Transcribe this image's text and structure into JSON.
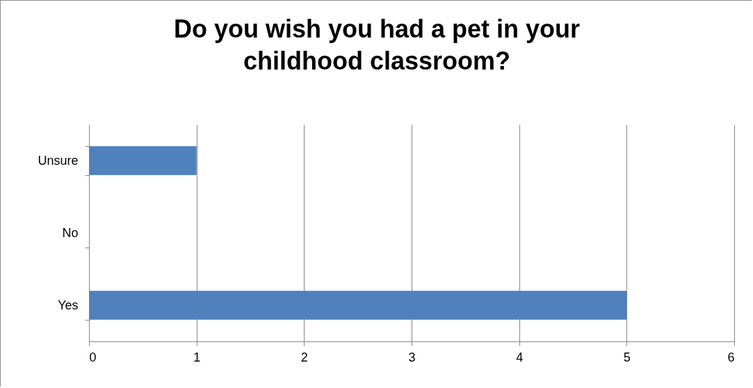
{
  "chart_data": {
    "type": "bar",
    "orientation": "horizontal",
    "title": "Do you wish you had a pet in your childhood classroom?",
    "categories": [
      "Unsure",
      "No",
      "Yes"
    ],
    "values": [
      1,
      0,
      5
    ],
    "color": "#4f81bd",
    "xlim": [
      0,
      6
    ],
    "xticks": [
      0,
      1,
      2,
      3,
      4,
      5,
      6
    ],
    "grid": "x"
  }
}
